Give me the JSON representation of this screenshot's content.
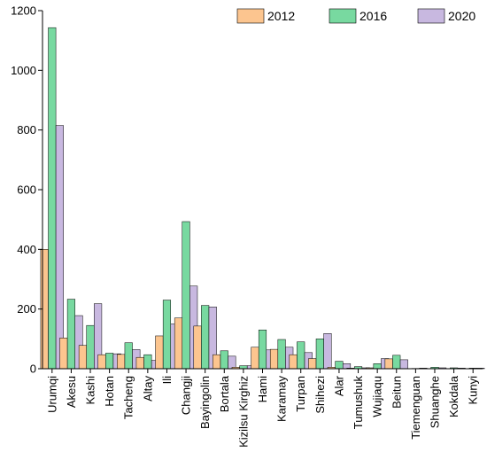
{
  "chart_data": {
    "type": "bar",
    "title": "",
    "xlabel": "",
    "ylabel": "",
    "ylim": [
      0,
      1200
    ],
    "yticks": [
      0,
      200,
      400,
      600,
      800,
      1000,
      1200
    ],
    "grid": false,
    "legend_position": "top-right",
    "categories": [
      "Urumqi",
      "Akesu",
      "Kashi",
      "Hotan",
      "Tacheng",
      "Altay",
      "Ili",
      "Changji",
      "Bayingolin",
      "Bortala",
      "Kizilsu Kirghiz",
      "Hami",
      "Karamay",
      "Turpan",
      "Shihezi",
      "Alar",
      "Tumushuk",
      "Wujiaqu",
      "Beitun",
      "Tiemenguan",
      "Shuanghe",
      "Kokdala",
      "Kunyi"
    ],
    "series": [
      {
        "name": "2012",
        "color": "#fcc58f",
        "values": [
          400,
          103,
          78,
          47,
          48,
          38,
          110,
          170,
          143,
          47,
          5,
          72,
          65,
          47,
          34,
          5,
          2,
          3,
          33,
          0,
          0,
          0,
          0
        ]
      },
      {
        "name": "2016",
        "color": "#78d9a0",
        "values": [
          1143,
          233,
          145,
          52,
          87,
          47,
          230,
          493,
          212,
          60,
          10,
          130,
          98,
          90,
          100,
          25,
          7,
          17,
          45,
          1,
          5,
          3,
          2
        ]
      },
      {
        "name": "2020",
        "color": "#c8b8e0",
        "values": [
          815,
          178,
          218,
          50,
          64,
          28,
          150,
          277,
          207,
          42,
          10,
          63,
          72,
          54,
          118,
          17,
          3,
          34,
          30,
          2,
          3,
          2,
          2
        ]
      }
    ]
  }
}
